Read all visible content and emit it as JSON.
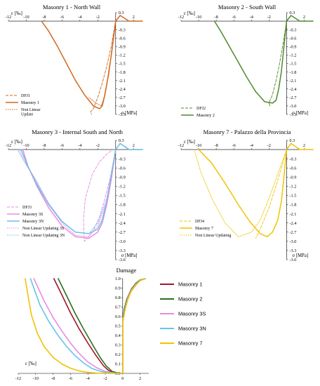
{
  "colors": {
    "masonry1": "#d2691e",
    "masonry2": "#4f8a2a",
    "masonry3s": "#e88be0",
    "masonry3n": "#66c4ea",
    "masonry7": "#f2c200",
    "dmg1": "#a3162a",
    "dmg2": "#2c6e1f",
    "axis": "#000000",
    "grid": "#000000"
  },
  "chart_data": [
    {
      "type": "line",
      "title": "Masonry 1 - North Wall",
      "xlabel": "ε [‰]",
      "ylabel": "σ [MPa]",
      "xticks": [
        "-12",
        "-10",
        "-8",
        "-6",
        "-4",
        "-2",
        "2"
      ],
      "yticks": [
        "0.3",
        "0",
        "-0.3",
        "-0.6",
        "-0.9",
        "-1.2",
        "-1.5",
        "-1.8",
        "-2.1",
        "-2.4",
        "-2.7",
        "-3.0",
        "-3.3"
      ],
      "xlim": [
        -12,
        3
      ],
      "ylim": [
        -3.3,
        0.3
      ],
      "legend": [
        "DFJ1",
        "Masonry 1",
        "Non Linear\nUpdate"
      ],
      "legend_position": "bottom-left",
      "series": [
        {
          "name": "DFJ1",
          "style": "dashed",
          "color": "masonry1",
          "x": [
            0,
            -0.5,
            -1.0,
            -1.5,
            -2.0,
            -2.5,
            -2.8,
            -2.7
          ],
          "y": [
            0,
            -0.9,
            -1.6,
            -2.2,
            -2.7,
            -3.1,
            -3.2,
            -3.3
          ]
        },
        {
          "name": "Masonry 1",
          "style": "solid",
          "color": "masonry1",
          "x": [
            3,
            1.5,
            0.5,
            0,
            -0.4,
            -0.8,
            -1.2,
            -1.5,
            -1.8,
            -2.5,
            -3.5,
            -4.5,
            -5.5,
            -6.5,
            -7.5,
            -8.3
          ],
          "y": [
            0,
            0,
            0.2,
            0,
            -1.0,
            -1.9,
            -2.6,
            -3.0,
            -3.1,
            -3.0,
            -2.6,
            -2.1,
            -1.5,
            -0.9,
            -0.35,
            0
          ]
        },
        {
          "name": "Non Linear\nUpdate",
          "style": "dotted",
          "color": "masonry1",
          "x": [
            0,
            -0.3,
            -0.6,
            -1.0,
            -1.3,
            -1.6,
            -2.2,
            -3.0
          ],
          "y": [
            0,
            -0.7,
            -1.4,
            -2.2,
            -2.7,
            -3.0,
            -2.9,
            -2.7
          ]
        }
      ]
    },
    {
      "type": "line",
      "title": "Masonry 2 - South Wall",
      "xlabel": "ε [‰]",
      "ylabel": "σ [MPa]",
      "xticks": [
        "-12",
        "-10",
        "-8",
        "-6",
        "-4",
        "-2",
        "2"
      ],
      "yticks": [
        "0.3",
        "0",
        "-0.3",
        "-0.6",
        "-0.9",
        "-1.2",
        "-1.5",
        "-1.8",
        "-2.1",
        "-2.4",
        "-2.7",
        "-3.0",
        "-3.3"
      ],
      "xlim": [
        -12,
        3
      ],
      "ylim": [
        -3.3,
        0.3
      ],
      "legend": [
        "DFJ2",
        "Masonry 2"
      ],
      "legend_position": "bottom-left",
      "series": [
        {
          "name": "DFJ2",
          "style": "dashed",
          "color": "masonry2",
          "x": [
            0,
            -0.4,
            -0.8,
            -1.2,
            -1.6,
            -2.0,
            -1.9
          ],
          "y": [
            0,
            -0.8,
            -1.5,
            -2.1,
            -2.6,
            -2.9,
            -3.0
          ]
        },
        {
          "name": "Masonry 2",
          "style": "solid",
          "color": "masonry2",
          "x": [
            3,
            1.5,
            0.5,
            0,
            -0.3,
            -0.6,
            -0.9,
            -1.2,
            -1.6,
            -2.5,
            -3.5,
            -4.5,
            -5.5,
            -6.5,
            -7.5,
            -8.2
          ],
          "y": [
            0,
            0,
            0.2,
            0,
            -0.9,
            -1.8,
            -2.4,
            -2.8,
            -2.9,
            -2.85,
            -2.5,
            -2.0,
            -1.45,
            -0.9,
            -0.35,
            0
          ]
        }
      ]
    },
    {
      "type": "line",
      "title": "Masonry 3 - Internal South and North",
      "xlabel": "ε [‰]",
      "ylabel": "σ [MPa]",
      "xticks": [
        "-12",
        "-10",
        "-8",
        "-6",
        "-4",
        "-2",
        "2"
      ],
      "yticks": [
        "0.3",
        "0",
        "-0.3",
        "-0.6",
        "-0.9",
        "-1.2",
        "-1.5",
        "-1.8",
        "-2.1",
        "-2.4",
        "-2.7",
        "-3.0",
        "-3.3",
        "-3.6"
      ],
      "xlim": [
        -12,
        3
      ],
      "ylim": [
        -3.6,
        0.3
      ],
      "legend": [
        "DFJ3",
        "Masonry 3S",
        "Masonry 3N",
        "Non Linear Updating 3S",
        "Non Linear Updating 3N"
      ],
      "legend_position": "bottom-left",
      "series": [
        {
          "name": "DFJ3",
          "style": "dashed",
          "color": "masonry3s",
          "x": [
            0,
            -0.6,
            -1.2,
            -1.8,
            -2.6,
            -3.2,
            -3.5,
            -3.6,
            -3.4,
            -2.6,
            -1.8,
            -1.0,
            -0.3
          ],
          "y": [
            0,
            -0.9,
            -1.6,
            -2.2,
            -2.7,
            -2.9,
            -3.0,
            -2.3,
            -1.6,
            -0.8,
            -0.4,
            -0.15,
            0
          ]
        },
        {
          "name": "Masonry 3S",
          "style": "solid",
          "color": "masonry3s",
          "x": [
            3,
            1.5,
            0.5,
            0,
            -0.5,
            -1.0,
            -1.5,
            -2.0,
            -3.0,
            -4.5,
            -6.0,
            -7.5,
            -8.8,
            -9.8,
            -10.4
          ],
          "y": [
            0,
            0,
            0.2,
            0,
            -1.0,
            -1.8,
            -2.4,
            -2.7,
            -2.9,
            -2.85,
            -2.5,
            -1.9,
            -1.2,
            -0.55,
            0
          ]
        },
        {
          "name": "Masonry 3N",
          "style": "solid",
          "color": "masonry3n",
          "x": [
            3,
            1.5,
            0.5,
            0,
            -0.5,
            -1.0,
            -1.5,
            -2.0,
            -3.0,
            -4.5,
            -6.0,
            -7.5,
            -8.8,
            -9.9,
            -10.6
          ],
          "y": [
            0,
            0,
            0.2,
            0,
            -0.9,
            -1.7,
            -2.3,
            -2.6,
            -2.75,
            -2.7,
            -2.35,
            -1.8,
            -1.15,
            -0.5,
            0
          ]
        },
        {
          "name": "Non Linear Updating 3S",
          "style": "dotted",
          "color": "masonry3s",
          "x": [
            0,
            -1.0,
            -2.0,
            -3.0,
            -4.5,
            -6.0,
            -7.5,
            -9.0,
            -10.2,
            -10.8
          ],
          "y": [
            0,
            -1.7,
            -2.5,
            -2.85,
            -2.8,
            -2.4,
            -1.8,
            -1.0,
            -0.4,
            0
          ]
        },
        {
          "name": "Non Linear Updating 3N",
          "style": "dotted",
          "color": "masonry3n",
          "x": [
            0,
            -1.0,
            -2.0,
            -3.0,
            -4.5,
            -6.0,
            -7.5,
            -9.0,
            -10.3,
            -11.0
          ],
          "y": [
            0,
            -1.6,
            -2.4,
            -2.75,
            -2.7,
            -2.35,
            -1.75,
            -0.95,
            -0.35,
            0
          ]
        }
      ]
    },
    {
      "type": "line",
      "title": "Masonry 7 - Palazzo della Provincia",
      "xlabel": "ε [‰]",
      "ylabel": "σ [MPa]",
      "xticks": [
        "-12",
        "-10",
        "-8",
        "-6",
        "-4",
        "-2",
        "2"
      ],
      "yticks": [
        "0.3",
        "0",
        "-0.3",
        "-0.6",
        "-0.9",
        "-1.2",
        "-1.5",
        "-1.8",
        "-2.1",
        "-2.4",
        "-2.7",
        "-3.0",
        "-3.3",
        "-3.6"
      ],
      "xlim": [
        -12,
        3
      ],
      "ylim": [
        -3.6,
        0.3
      ],
      "legend": [
        "DFJ4",
        "Masonry 7",
        "Non Linear Updating"
      ],
      "legend_position": "bottom-left",
      "series": [
        {
          "name": "DFJ4",
          "style": "dashed",
          "color": "masonry7",
          "x": [
            0,
            -1.0,
            -2.0,
            -3.0,
            -3.5
          ],
          "y": [
            0,
            -1.0,
            -1.9,
            -2.6,
            -2.9
          ]
        },
        {
          "name": "Masonry 7",
          "style": "solid",
          "color": "masonry7",
          "x": [
            3,
            1.5,
            0.5,
            0,
            -0.3,
            -0.6,
            -1.0,
            -1.6,
            -2.2,
            -3.0,
            -4.2,
            -5.5,
            -7.0,
            -8.5,
            -10.0
          ],
          "y": [
            0,
            0,
            0.2,
            0,
            -0.9,
            -1.7,
            -2.3,
            -2.7,
            -2.85,
            -2.75,
            -2.35,
            -1.8,
            -1.1,
            -0.45,
            0
          ]
        },
        {
          "name": "Non Linear Updating",
          "style": "dotted",
          "color": "masonry7",
          "x": [
            0,
            -1.0,
            -2.0,
            -3.0,
            -4.0,
            -5.5,
            -7.0,
            -8.5,
            -9.8,
            -10.5
          ],
          "y": [
            0,
            -0.8,
            -1.6,
            -2.3,
            -2.7,
            -2.85,
            -2.4,
            -1.6,
            -0.7,
            0
          ]
        }
      ]
    },
    {
      "type": "line",
      "title": "Damage",
      "xlabel": "ε [‰]",
      "xticks": [
        "-12",
        "-10",
        "-8",
        "-6",
        "-4",
        "-2",
        "0",
        "2"
      ],
      "yticks": [
        "0.0",
        "0.1",
        "0.2",
        "0.3",
        "0.4",
        "0.5",
        "0.6",
        "0.7",
        "0.8",
        "0.9",
        "1.0"
      ],
      "xlim": [
        -12,
        3
      ],
      "ylim": [
        0,
        1
      ],
      "legend": [
        "Masonry 1",
        "Masonry 2",
        "Masonry 3S",
        "Masonry 3N",
        "Masonry 7"
      ],
      "legend_position": "right",
      "series": [
        {
          "name": "Masonry 1",
          "color": "dmg1",
          "x": [
            -7.9,
            -7.0,
            -6.0,
            -5.0,
            -4.0,
            -3.0,
            -2.2,
            -1.6,
            -1.0,
            -0.5,
            -0.2,
            0,
            0,
            0.2,
            0.5,
            1.0,
            1.5,
            2.0,
            2.6
          ],
          "y": [
            1.0,
            0.83,
            0.64,
            0.47,
            0.32,
            0.18,
            0.08,
            0.03,
            0.01,
            0,
            0,
            0,
            0.55,
            0.68,
            0.78,
            0.88,
            0.94,
            0.98,
            1.0
          ]
        },
        {
          "name": "Masonry 2",
          "color": "dmg2",
          "x": [
            -7.4,
            -6.5,
            -5.5,
            -4.5,
            -3.5,
            -2.6,
            -1.9,
            -1.2,
            -0.6,
            -0.2,
            0,
            0,
            0.2,
            0.5,
            1.0,
            1.5,
            2.0,
            2.6
          ],
          "y": [
            1.0,
            0.83,
            0.64,
            0.47,
            0.31,
            0.17,
            0.08,
            0.02,
            0.005,
            0,
            0,
            0.55,
            0.69,
            0.79,
            0.89,
            0.95,
            0.985,
            1.0
          ]
        },
        {
          "name": "Masonry 3S",
          "color": "masonry3s",
          "x": [
            -10.2,
            -9.0,
            -8.0,
            -7.0,
            -6.0,
            -5.0,
            -4.0,
            -3.0,
            -2.0,
            -1.0,
            -0.3,
            0,
            0,
            0.3,
            0.6,
            1.0,
            1.5,
            2.0,
            2.6
          ],
          "y": [
            1.0,
            0.76,
            0.59,
            0.45,
            0.32,
            0.21,
            0.12,
            0.06,
            0.02,
            0.005,
            0,
            0,
            0.55,
            0.7,
            0.8,
            0.88,
            0.94,
            0.98,
            1.0
          ]
        },
        {
          "name": "Masonry 3N",
          "color": "masonry3n",
          "x": [
            -10.6,
            -9.5,
            -8.5,
            -7.5,
            -6.5,
            -5.5,
            -4.5,
            -3.5,
            -2.5,
            -1.5,
            -0.5,
            0,
            0,
            0.3,
            0.6,
            1.0,
            1.5,
            2.0,
            2.6
          ],
          "y": [
            1.0,
            0.72,
            0.55,
            0.41,
            0.29,
            0.19,
            0.11,
            0.05,
            0.02,
            0.005,
            0,
            0,
            0.54,
            0.69,
            0.79,
            0.87,
            0.93,
            0.98,
            1.0
          ]
        },
        {
          "name": "Masonry 7",
          "color": "masonry7",
          "x": [
            -11.2,
            -10.5,
            -9.8,
            -9.0,
            -8.0,
            -7.0,
            -6.0,
            -5.0,
            -4.0,
            -3.0,
            -2.0,
            -1.0,
            0,
            0,
            0.3,
            0.6,
            1.0,
            1.5,
            2.0,
            2.6
          ],
          "y": [
            1.0,
            0.62,
            0.42,
            0.28,
            0.17,
            0.1,
            0.055,
            0.025,
            0.01,
            0.004,
            0.001,
            0,
            0,
            0.54,
            0.68,
            0.78,
            0.87,
            0.93,
            0.98,
            1.0
          ]
        }
      ]
    }
  ]
}
